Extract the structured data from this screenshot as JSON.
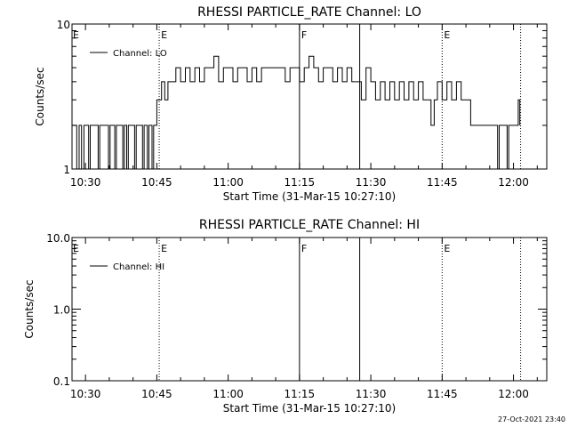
{
  "footer": {
    "timestamp": "27-Oct-2021 23:40"
  },
  "chart_data": [
    {
      "type": "line",
      "title": "RHESSI PARTICLE_RATE Channel: LO",
      "xlabel": "Start Time (31-Mar-15 10:27:10)",
      "ylabel": "Counts/sec",
      "y_scale": "log",
      "ylim": [
        1,
        10
      ],
      "xlim": [
        "10:27:10",
        "12:07:00"
      ],
      "x_tick_labels": [
        "10:30",
        "10:45",
        "11:00",
        "11:15",
        "11:30",
        "11:45",
        "12:00"
      ],
      "y_tick_labels": [
        "1",
        "10"
      ],
      "legend": "top-left",
      "grid": false,
      "color": "#000000",
      "series": [
        {
          "name": "Channel: LO",
          "points": [
            [
              "10:27:10",
              2
            ],
            [
              "10:28:10",
              1
            ],
            [
              "10:28:40",
              2
            ],
            [
              "10:29:10",
              1
            ],
            [
              "10:29:40",
              2
            ],
            [
              "10:30:40",
              1
            ],
            [
              "10:31:00",
              2
            ],
            [
              "10:32:20",
              2
            ],
            [
              "10:32:40",
              1
            ],
            [
              "10:33:00",
              2
            ],
            [
              "10:34:30",
              2
            ],
            [
              "10:34:50",
              1
            ],
            [
              "10:35:10",
              2
            ],
            [
              "10:36:10",
              1
            ],
            [
              "10:36:30",
              2
            ],
            [
              "10:37:30",
              2
            ],
            [
              "10:37:50",
              1
            ],
            [
              "10:38:10",
              2
            ],
            [
              "10:38:40",
              1
            ],
            [
              "10:39:00",
              2
            ],
            [
              "10:40:00",
              2
            ],
            [
              "10:40:20",
              1
            ],
            [
              "10:40:40",
              2
            ],
            [
              "10:41:40",
              2
            ],
            [
              "10:42:00",
              1
            ],
            [
              "10:42:20",
              2
            ],
            [
              "10:43:00",
              1
            ],
            [
              "10:43:20",
              2
            ],
            [
              "10:44:00",
              1
            ],
            [
              "10:44:20",
              2
            ],
            [
              "10:45:00",
              3
            ],
            [
              "10:46:00",
              4
            ],
            [
              "10:46:40",
              3
            ],
            [
              "10:47:20",
              4
            ],
            [
              "10:48:00",
              4
            ],
            [
              "10:49:00",
              5
            ],
            [
              "10:50:00",
              4
            ],
            [
              "10:51:00",
              5
            ],
            [
              "10:52:00",
              4
            ],
            [
              "10:53:00",
              5
            ],
            [
              "10:54:00",
              4
            ],
            [
              "10:55:00",
              5
            ],
            [
              "10:56:00",
              5
            ],
            [
              "10:57:00",
              6
            ],
            [
              "10:58:00",
              4
            ],
            [
              "10:59:00",
              5
            ],
            [
              "11:00:00",
              5
            ],
            [
              "11:01:00",
              4
            ],
            [
              "11:02:00",
              5
            ],
            [
              "11:03:00",
              5
            ],
            [
              "11:04:00",
              4
            ],
            [
              "11:05:00",
              5
            ],
            [
              "11:06:00",
              4
            ],
            [
              "11:07:00",
              5
            ],
            [
              "11:08:00",
              5
            ],
            [
              "11:09:00",
              5
            ],
            [
              "11:10:00",
              5
            ],
            [
              "11:11:00",
              5
            ],
            [
              "11:12:00",
              4
            ],
            [
              "11:13:00",
              5
            ],
            [
              "11:14:00",
              5
            ],
            [
              "11:15:00",
              4
            ],
            [
              "11:16:00",
              5
            ],
            [
              "11:17:00",
              6
            ],
            [
              "11:18:00",
              5
            ],
            [
              "11:19:00",
              4
            ],
            [
              "11:20:00",
              5
            ],
            [
              "11:21:00",
              5
            ],
            [
              "11:22:00",
              4
            ],
            [
              "11:23:00",
              5
            ],
            [
              "11:24:00",
              4
            ],
            [
              "11:25:00",
              5
            ],
            [
              "11:26:00",
              4
            ],
            [
              "11:27:00",
              4
            ],
            [
              "11:28:00",
              3
            ],
            [
              "11:29:00",
              5
            ],
            [
              "11:30:00",
              4
            ],
            [
              "11:31:00",
              3
            ],
            [
              "11:32:00",
              4
            ],
            [
              "11:33:00",
              3
            ],
            [
              "11:34:00",
              4
            ],
            [
              "11:35:00",
              3
            ],
            [
              "11:36:00",
              4
            ],
            [
              "11:37:00",
              3
            ],
            [
              "11:38:00",
              4
            ],
            [
              "11:39:00",
              3
            ],
            [
              "11:40:00",
              4
            ],
            [
              "11:41:00",
              3
            ],
            [
              "11:42:00",
              3
            ],
            [
              "11:42:40",
              2
            ],
            [
              "11:43:20",
              3
            ],
            [
              "11:44:00",
              4
            ],
            [
              "11:45:00",
              3
            ],
            [
              "11:46:00",
              4
            ],
            [
              "11:47:00",
              3
            ],
            [
              "11:48:00",
              4
            ],
            [
              "11:49:00",
              3
            ],
            [
              "11:50:00",
              3
            ],
            [
              "11:51:00",
              2
            ],
            [
              "11:52:00",
              2
            ],
            [
              "11:53:00",
              2
            ],
            [
              "11:54:00",
              2
            ],
            [
              "11:55:00",
              2
            ],
            [
              "11:56:00",
              2
            ],
            [
              "11:56:40",
              1
            ],
            [
              "11:57:00",
              2
            ],
            [
              "11:58:00",
              2
            ],
            [
              "11:58:40",
              1
            ],
            [
              "11:59:00",
              2
            ],
            [
              "12:00:00",
              2
            ],
            [
              "12:01:00",
              3
            ],
            [
              "12:01:20",
              2
            ]
          ]
        }
      ],
      "event_markers": [
        {
          "time": "10:45:30",
          "label": "E",
          "style": "dotted"
        },
        {
          "time": "11:15:00",
          "label": "F",
          "style": "solid"
        },
        {
          "time": "11:27:40",
          "label": "",
          "style": "solid"
        },
        {
          "time": "11:45:00",
          "label": "E",
          "style": "dotted"
        },
        {
          "time": "12:01:30",
          "label": "",
          "style": "dotted"
        }
      ]
    },
    {
      "type": "line",
      "title": "RHESSI PARTICLE_RATE Channel: HI",
      "xlabel": "Start Time (31-Mar-15 10:27:10)",
      "ylabel": "Counts/sec",
      "y_scale": "log",
      "ylim": [
        0.1,
        10
      ],
      "xlim": [
        "10:27:10",
        "12:07:00"
      ],
      "x_tick_labels": [
        "10:30",
        "10:45",
        "11:00",
        "11:15",
        "11:30",
        "11:45",
        "12:00"
      ],
      "y_tick_labels": [
        "0.1",
        "1.0",
        "10.0"
      ],
      "legend": "top-left",
      "grid": false,
      "color": "#000000",
      "series": [
        {
          "name": "Channel: HI",
          "points": []
        }
      ],
      "event_markers": [
        {
          "time": "10:45:30",
          "label": "E",
          "style": "dotted"
        },
        {
          "time": "11:15:00",
          "label": "F",
          "style": "solid"
        },
        {
          "time": "11:27:40",
          "label": "",
          "style": "solid"
        },
        {
          "time": "11:45:00",
          "label": "E",
          "style": "dotted"
        },
        {
          "time": "12:01:30",
          "label": "",
          "style": "dotted"
        }
      ]
    }
  ]
}
